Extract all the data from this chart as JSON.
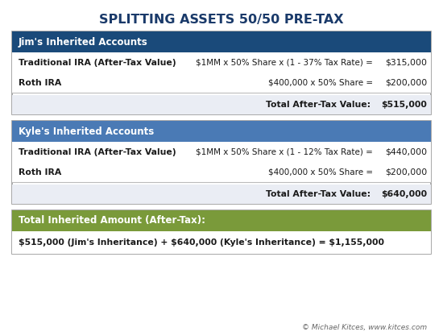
{
  "title": "SPLITTING ASSETS 50/50 PRE-TAX",
  "title_fontsize": 11.5,
  "background_color": "#ffffff",
  "jim_header": "Jim's Inherited Accounts",
  "jim_header_bg": "#1a4a7a",
  "jim_header_text_color": "#ffffff",
  "jim_row1_label": "Traditional IRA (After-Tax Value)",
  "jim_row1_formula": "$1MM x 50% Share x (1 - 37% Tax Rate) =",
  "jim_row1_value": "$315,000",
  "jim_row2_label": "Roth IRA",
  "jim_row2_formula": "$400,000 x 50% Share =",
  "jim_row2_value": "$200,000",
  "jim_total_label": "Total After-Tax Value:",
  "jim_total_value": "$515,000",
  "jim_total_bg": "#eaedf4",
  "kyle_header": "Kyle's Inherited Accounts",
  "kyle_header_bg": "#4a7ab5",
  "kyle_header_text_color": "#ffffff",
  "kyle_row1_label": "Traditional IRA (After-Tax Value)",
  "kyle_row1_formula": "$1MM x 50% Share x (1 - 12% Tax Rate) =",
  "kyle_row1_value": "$440,000",
  "kyle_row2_label": "Roth IRA",
  "kyle_row2_formula": "$400,000 x 50% Share =",
  "kyle_row2_value": "$200,000",
  "kyle_total_label": "Total After-Tax Value:",
  "kyle_total_value": "$640,000",
  "kyle_total_bg": "#eaedf4",
  "total_header": "Total Inherited Amount (After-Tax):",
  "total_header_bg": "#7a9a3a",
  "total_header_text_color": "#ffffff",
  "total_body_text": "$515,000 (Jim's Inheritance) + $640,000 (Kyle's Inheritance) = $1,155,000",
  "total_body_bg": "#ffffff",
  "footer": "© Michael Kitces, www.kitces.com",
  "footer_color": "#666666",
  "outer_border_color": "#999999",
  "section_border_color": "#bbbbbb",
  "row_bg_white": "#ffffff",
  "label_color": "#1a1a1a"
}
